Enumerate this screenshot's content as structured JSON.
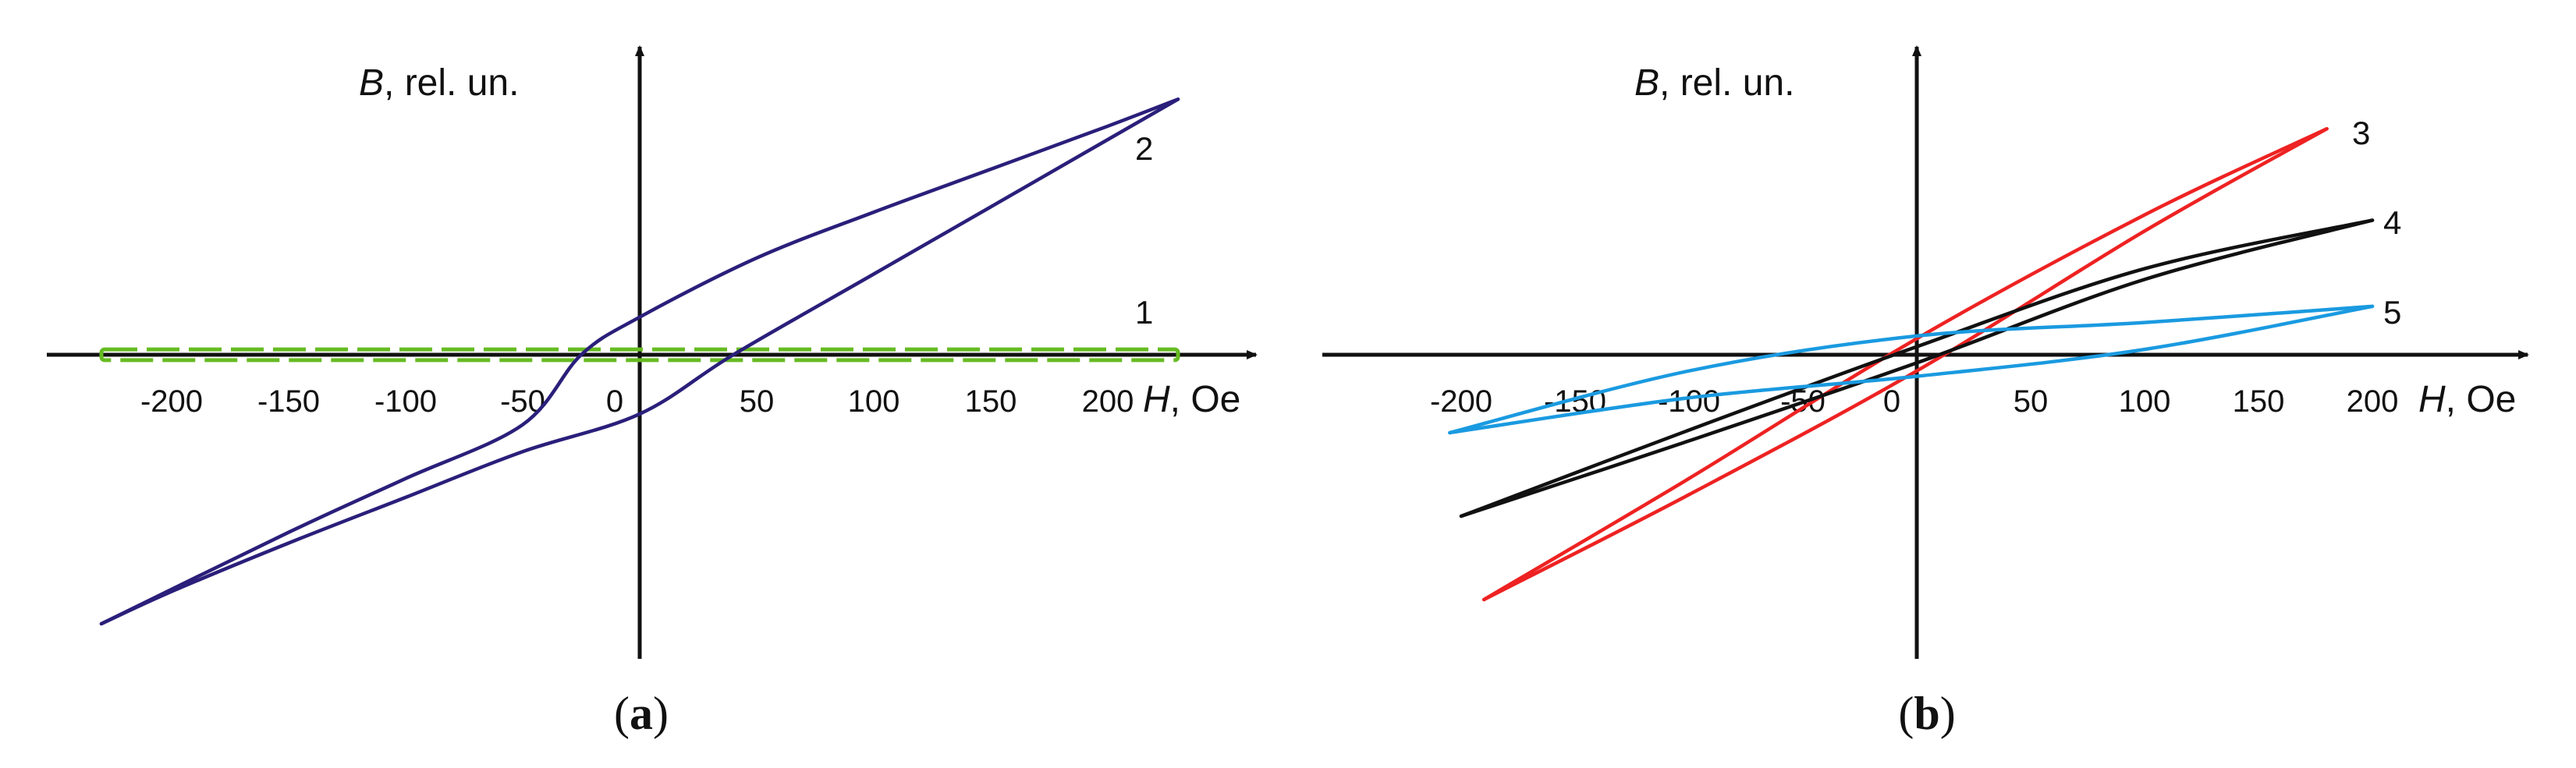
{
  "chart_data": [
    {
      "panel": "(a)",
      "panel_letter": "a",
      "type": "line",
      "x_unit": "Oe",
      "y_unit": "rel. un.",
      "x_axis_symbol": "H",
      "y_axis_symbol": "B",
      "xticks": [
        "-200",
        "-150",
        "-100",
        "-50",
        "0",
        "50",
        "100",
        "150",
        "200"
      ],
      "xlim": [
        -235,
        235
      ],
      "ylim": [
        -1.0,
        1.0
      ],
      "series": [
        {
          "name": "1",
          "color": "#66bb22",
          "style": "dashed-loop",
          "upper": [
            [
              -230,
              0.02
            ],
            [
              230,
              0.02
            ]
          ],
          "lower": [
            [
              -230,
              -0.02
            ],
            [
              230,
              -0.02
            ]
          ]
        },
        {
          "name": "2",
          "color": "#2a1f7a",
          "style": "solid-loop",
          "upper": [
            [
              -230,
              -1.0
            ],
            [
              -150,
              -0.66
            ],
            [
              -100,
              -0.46
            ],
            [
              -50,
              -0.26
            ],
            [
              -25,
              0.0
            ],
            [
              0,
              0.14
            ],
            [
              50,
              0.36
            ],
            [
              100,
              0.53
            ],
            [
              150,
              0.69
            ],
            [
              200,
              0.85
            ],
            [
              230,
              0.95
            ]
          ],
          "lower": [
            [
              -230,
              -1.0
            ],
            [
              -200,
              -0.88
            ],
            [
              -150,
              -0.7
            ],
            [
              -100,
              -0.53
            ],
            [
              -50,
              -0.36
            ],
            [
              0,
              -0.22
            ],
            [
              40,
              0.0
            ],
            [
              100,
              0.3
            ],
            [
              150,
              0.55
            ],
            [
              200,
              0.8
            ],
            [
              230,
              0.95
            ]
          ]
        }
      ]
    },
    {
      "panel": "(b)",
      "panel_letter": "b",
      "type": "line",
      "x_unit": "Oe",
      "y_unit": "rel. un.",
      "x_axis_symbol": "H",
      "y_axis_symbol": "B",
      "xticks": [
        "-200",
        "-150",
        "-100",
        "-50",
        "0",
        "50",
        "100",
        "150",
        "200"
      ],
      "xlim": [
        -250,
        265
      ],
      "ylim": [
        -1.0,
        1.0
      ],
      "series": [
        {
          "name": "3",
          "color": "#ee2222",
          "style": "solid-loop",
          "upper": [
            [
              -190,
              -0.91
            ],
            [
              -100,
              -0.46
            ],
            [
              0,
              0.06
            ],
            [
              100,
              0.52
            ],
            [
              180,
              0.84
            ]
          ],
          "lower": [
            [
              -190,
              -0.91
            ],
            [
              -100,
              -0.52
            ],
            [
              0,
              -0.06
            ],
            [
              100,
              0.46
            ],
            [
              180,
              0.84
            ]
          ]
        },
        {
          "name": "4",
          "color": "#111111",
          "style": "solid-loop",
          "upper": [
            [
              -200,
              -0.6
            ],
            [
              -100,
              -0.28
            ],
            [
              0,
              0.03
            ],
            [
              100,
              0.32
            ],
            [
              200,
              0.5
            ]
          ],
          "lower": [
            [
              -200,
              -0.6
            ],
            [
              -100,
              -0.32
            ],
            [
              0,
              -0.03
            ],
            [
              100,
              0.28
            ],
            [
              200,
              0.5
            ]
          ]
        },
        {
          "name": "5",
          "color": "#1a9ae0",
          "style": "solid-loop",
          "upper": [
            [
              -205,
              -0.29
            ],
            [
              -100,
              -0.06
            ],
            [
              0,
              0.07
            ],
            [
              100,
              0.12
            ],
            [
              200,
              0.18
            ]
          ],
          "lower": [
            [
              -205,
              -0.29
            ],
            [
              -100,
              -0.16
            ],
            [
              0,
              -0.08
            ],
            [
              100,
              0.02
            ],
            [
              200,
              0.18
            ]
          ]
        }
      ]
    }
  ]
}
